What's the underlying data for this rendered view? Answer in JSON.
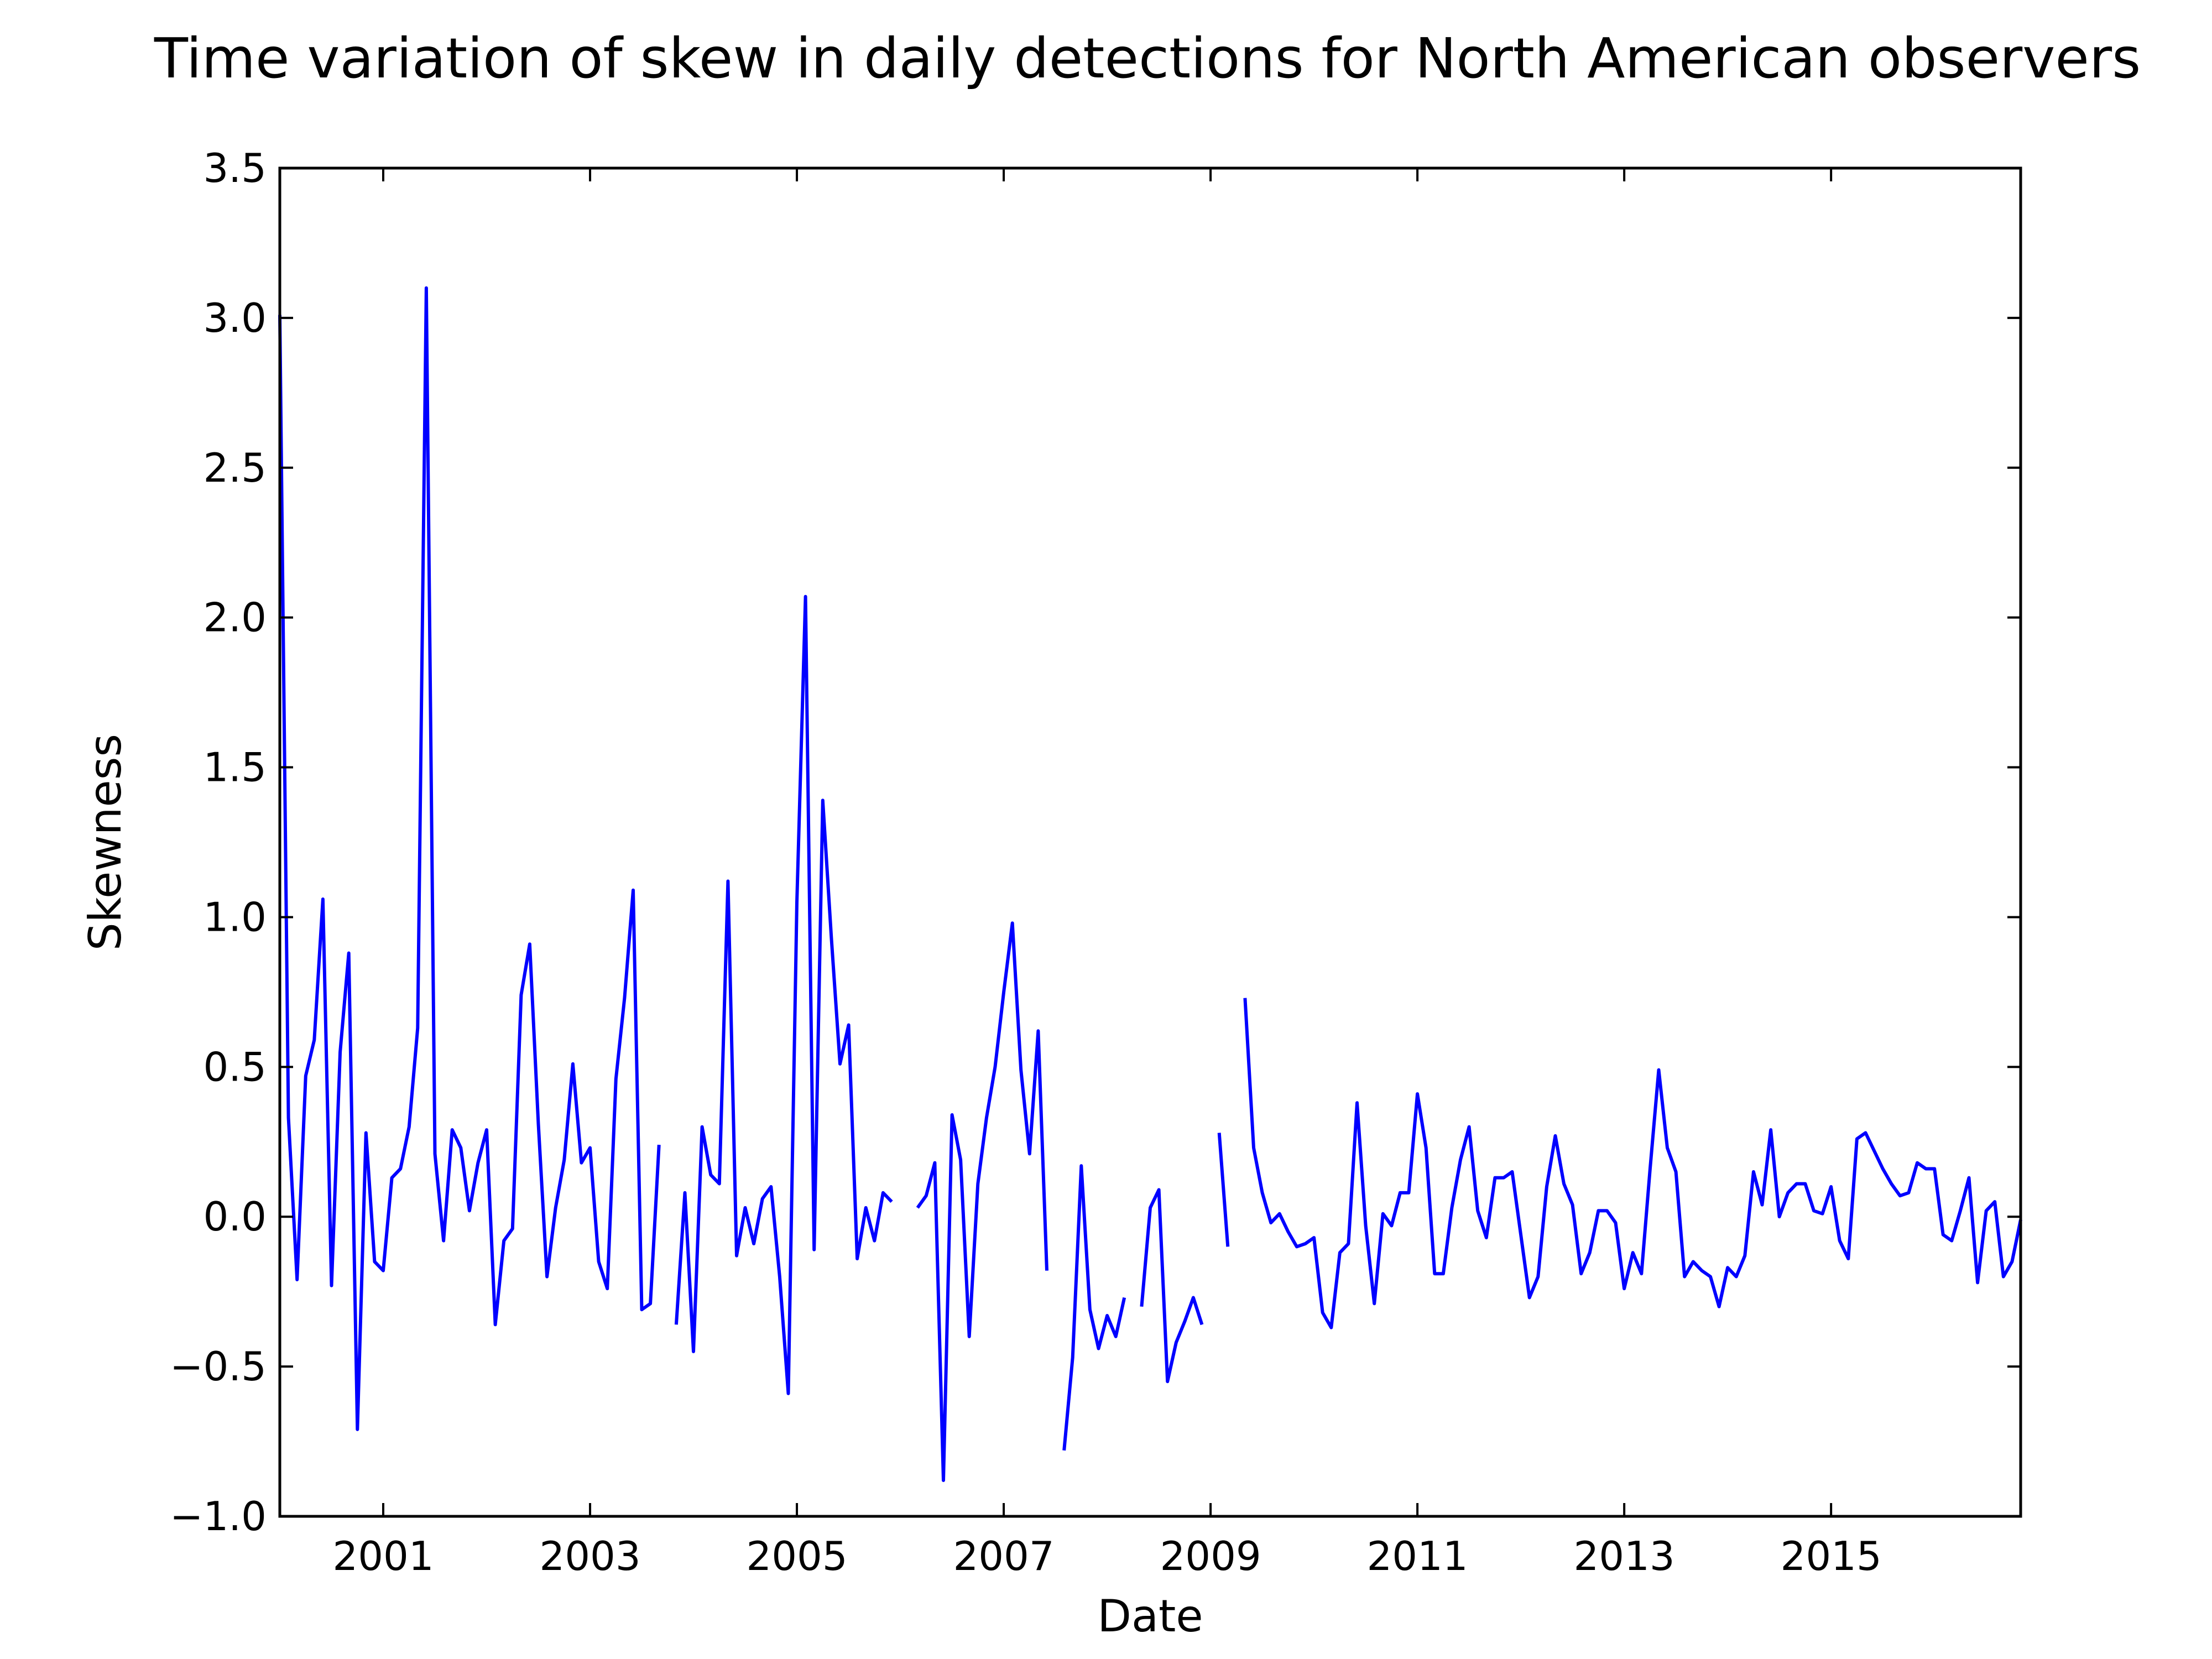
{
  "chart_data": {
    "type": "line",
    "title": "Time variation of skew in daily detections for North American observers",
    "xlabel": "Date",
    "ylabel": "Skewness",
    "x_tick_labels": [
      "2001",
      "2003",
      "2005",
      "2007",
      "2009",
      "2011",
      "2013",
      "2015"
    ],
    "y_tick_labels": [
      "−1.0",
      "−0.5",
      "0.0",
      "0.5",
      "1.0",
      "1.5",
      "2.0",
      "2.5",
      "3.0",
      "3.5"
    ],
    "xlim": [
      "2000-01",
      "2016-11"
    ],
    "ylim": [
      -1.0,
      3.5
    ],
    "grid": false,
    "line_color": "#0000ff",
    "series": [
      {
        "segments": [
          [
            [
              "2000-01",
              3.01
            ],
            [
              "2000-02",
              0.33
            ],
            [
              "2000-03",
              -0.21
            ],
            [
              "2000-04",
              0.47
            ],
            [
              "2000-05",
              0.59
            ],
            [
              "2000-06",
              1.06
            ],
            [
              "2000-07",
              -0.23
            ],
            [
              "2000-08",
              0.55
            ],
            [
              "2000-09",
              0.88
            ],
            [
              "2000-10",
              -0.71
            ],
            [
              "2000-11",
              0.28
            ],
            [
              "2000-12",
              -0.15
            ],
            [
              "2001-01",
              -0.18
            ],
            [
              "2001-02",
              0.13
            ],
            [
              "2001-03",
              0.16
            ],
            [
              "2001-04",
              0.3
            ],
            [
              "2001-05",
              0.63
            ],
            [
              "2001-06",
              3.1
            ],
            [
              "2001-07",
              0.21
            ],
            [
              "2001-08",
              -0.08
            ],
            [
              "2001-09",
              0.29
            ],
            [
              "2001-10",
              0.23
            ],
            [
              "2001-11",
              0.02
            ],
            [
              "2001-12",
              0.18
            ],
            [
              "2002-01",
              0.29
            ],
            [
              "2002-02",
              -0.36
            ],
            [
              "2002-03",
              -0.08
            ],
            [
              "2002-04",
              -0.04
            ],
            [
              "2002-05",
              0.74
            ],
            [
              "2002-06",
              0.91
            ],
            [
              "2002-07",
              0.31
            ],
            [
              "2002-08",
              -0.2
            ],
            [
              "2002-09",
              0.03
            ],
            [
              "2002-10",
              0.19
            ],
            [
              "2002-11",
              0.51
            ],
            [
              "2002-12",
              0.18
            ],
            [
              "2003-01",
              0.23
            ],
            [
              "2003-02",
              -0.15
            ],
            [
              "2003-03",
              -0.24
            ],
            [
              "2003-04",
              0.46
            ],
            [
              "2003-05",
              0.73
            ],
            [
              "2003-06",
              1.09
            ],
            [
              "2003-07",
              -0.31
            ],
            [
              "2003-08",
              -0.29
            ],
            [
              "2003-09",
              0.24
            ]
          ],
          [
            [
              "2003-11",
              -0.36
            ],
            [
              "2003-12",
              0.08
            ],
            [
              "2004-01",
              -0.45
            ],
            [
              "2004-02",
              0.3
            ],
            [
              "2004-03",
              0.14
            ],
            [
              "2004-04",
              0.11
            ],
            [
              "2004-05",
              1.12
            ],
            [
              "2004-06",
              -0.13
            ],
            [
              "2004-07",
              0.03
            ],
            [
              "2004-08",
              -0.09
            ],
            [
              "2004-09",
              0.06
            ],
            [
              "2004-10",
              0.1
            ],
            [
              "2004-11",
              -0.2
            ],
            [
              "2004-12",
              -0.59
            ],
            [
              "2005-01",
              1.05
            ],
            [
              "2005-02",
              2.07
            ],
            [
              "2005-03",
              -0.11
            ],
            [
              "2005-04",
              1.39
            ],
            [
              "2005-05",
              0.93
            ],
            [
              "2005-06",
              0.51
            ],
            [
              "2005-07",
              0.64
            ],
            [
              "2005-08",
              -0.14
            ],
            [
              "2005-09",
              0.03
            ],
            [
              "2005-10",
              -0.08
            ],
            [
              "2005-11",
              0.08
            ],
            [
              "2005-12",
              0.05
            ]
          ],
          [
            [
              "2006-03",
              0.03
            ],
            [
              "2006-04",
              0.07
            ],
            [
              "2006-05",
              0.18
            ],
            [
              "2006-06",
              -0.88
            ],
            [
              "2006-07",
              0.34
            ],
            [
              "2006-08",
              0.19
            ],
            [
              "2006-09",
              -0.4
            ],
            [
              "2006-10",
              0.11
            ],
            [
              "2006-11",
              0.33
            ],
            [
              "2006-12",
              0.5
            ],
            [
              "2007-01",
              0.75
            ],
            [
              "2007-02",
              0.98
            ],
            [
              "2007-03",
              0.49
            ],
            [
              "2007-04",
              0.21
            ],
            [
              "2007-05",
              0.62
            ],
            [
              "2007-06",
              -0.18
            ]
          ],
          [
            [
              "2007-08",
              -0.78
            ],
            [
              "2007-09",
              -0.47
            ],
            [
              "2007-10",
              0.17
            ],
            [
              "2007-11",
              -0.31
            ],
            [
              "2007-12",
              -0.44
            ],
            [
              "2008-01",
              -0.33
            ],
            [
              "2008-02",
              -0.4
            ],
            [
              "2008-03",
              -0.27
            ]
          ],
          [
            [
              "2008-05",
              -0.3
            ],
            [
              "2008-06",
              0.03
            ],
            [
              "2008-07",
              0.09
            ],
            [
              "2008-08",
              -0.55
            ],
            [
              "2008-09",
              -0.42
            ],
            [
              "2008-10",
              -0.35
            ],
            [
              "2008-11",
              -0.27
            ],
            [
              "2008-12",
              -0.36
            ]
          ],
          [
            [
              "2009-02",
              0.28
            ],
            [
              "2009-03",
              -0.1
            ]
          ],
          [
            [
              "2009-05",
              0.73
            ],
            [
              "2009-06",
              0.23
            ],
            [
              "2009-07",
              0.08
            ],
            [
              "2009-08",
              -0.02
            ],
            [
              "2009-09",
              0.01
            ],
            [
              "2009-10",
              -0.05
            ],
            [
              "2009-11",
              -0.1
            ],
            [
              "2009-12",
              -0.09
            ],
            [
              "2010-01",
              -0.07
            ],
            [
              "2010-02",
              -0.32
            ],
            [
              "2010-03",
              -0.37
            ],
            [
              "2010-04",
              -0.12
            ],
            [
              "2010-05",
              -0.09
            ],
            [
              "2010-06",
              0.38
            ],
            [
              "2010-07",
              -0.03
            ],
            [
              "2010-08",
              -0.29
            ],
            [
              "2010-09",
              0.01
            ],
            [
              "2010-10",
              -0.03
            ],
            [
              "2010-11",
              0.08
            ],
            [
              "2010-12",
              0.08
            ],
            [
              "2011-01",
              0.41
            ],
            [
              "2011-02",
              0.23
            ],
            [
              "2011-03",
              -0.19
            ],
            [
              "2011-04",
              -0.19
            ],
            [
              "2011-05",
              0.03
            ],
            [
              "2011-06",
              0.19
            ],
            [
              "2011-07",
              0.3
            ],
            [
              "2011-08",
              0.02
            ],
            [
              "2011-09",
              -0.07
            ],
            [
              "2011-10",
              0.13
            ],
            [
              "2011-11",
              0.13
            ],
            [
              "2011-12",
              0.15
            ],
            [
              "2012-01",
              -0.06
            ],
            [
              "2012-02",
              -0.27
            ],
            [
              "2012-03",
              -0.2
            ],
            [
              "2012-04",
              0.1
            ],
            [
              "2012-05",
              0.27
            ],
            [
              "2012-06",
              0.11
            ],
            [
              "2012-07",
              0.04
            ],
            [
              "2012-08",
              -0.19
            ],
            [
              "2012-09",
              -0.12
            ],
            [
              "2012-10",
              0.02
            ],
            [
              "2012-11",
              0.02
            ],
            [
              "2012-12",
              -0.02
            ],
            [
              "2013-01",
              -0.24
            ],
            [
              "2013-02",
              -0.12
            ],
            [
              "2013-03",
              -0.19
            ],
            [
              "2013-04",
              0.16
            ],
            [
              "2013-05",
              0.49
            ],
            [
              "2013-06",
              0.23
            ],
            [
              "2013-07",
              0.15
            ],
            [
              "2013-08",
              -0.2
            ],
            [
              "2013-09",
              -0.15
            ],
            [
              "2013-10",
              -0.18
            ],
            [
              "2013-11",
              -0.2
            ],
            [
              "2013-12",
              -0.3
            ],
            [
              "2014-01",
              -0.17
            ],
            [
              "2014-02",
              -0.2
            ],
            [
              "2014-03",
              -0.13
            ],
            [
              "2014-04",
              0.15
            ],
            [
              "2014-05",
              0.04
            ],
            [
              "2014-06",
              0.29
            ],
            [
              "2014-07",
              0.0
            ],
            [
              "2014-08",
              0.08
            ],
            [
              "2014-09",
              0.11
            ],
            [
              "2014-10",
              0.11
            ],
            [
              "2014-11",
              0.02
            ],
            [
              "2014-12",
              0.01
            ],
            [
              "2015-01",
              0.1
            ],
            [
              "2015-02",
              -0.08
            ],
            [
              "2015-03",
              -0.14
            ],
            [
              "2015-04",
              0.26
            ],
            [
              "2015-05",
              0.28
            ],
            [
              "2015-06",
              0.22
            ],
            [
              "2015-07",
              0.16
            ],
            [
              "2015-08",
              0.11
            ],
            [
              "2015-09",
              0.07
            ],
            [
              "2015-10",
              0.08
            ],
            [
              "2015-11",
              0.18
            ],
            [
              "2015-12",
              0.16
            ],
            [
              "2016-01",
              0.16
            ],
            [
              "2016-02",
              -0.06
            ],
            [
              "2016-03",
              -0.08
            ],
            [
              "2016-04",
              0.02
            ],
            [
              "2016-05",
              0.13
            ],
            [
              "2016-06",
              -0.22
            ],
            [
              "2016-07",
              0.02
            ],
            [
              "2016-08",
              0.05
            ],
            [
              "2016-09",
              -0.2
            ],
            [
              "2016-10",
              -0.15
            ],
            [
              "2016-11",
              -0.01
            ]
          ]
        ]
      }
    ]
  }
}
